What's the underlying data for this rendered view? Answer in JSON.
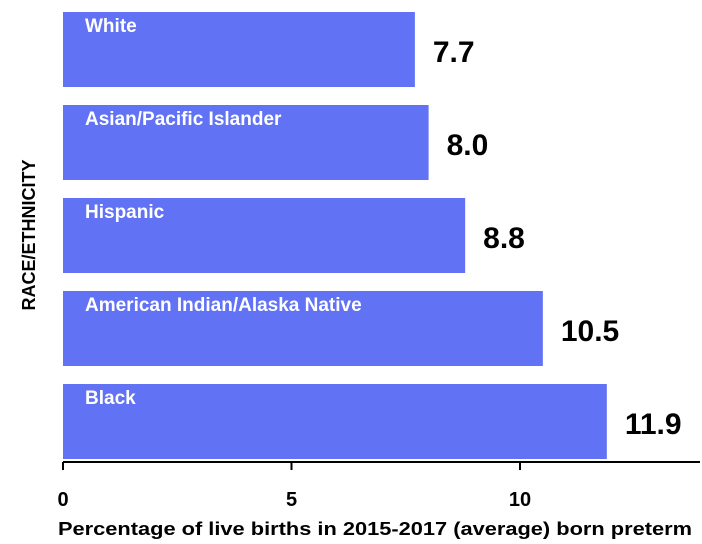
{
  "chart_data": {
    "type": "bar",
    "orientation": "horizontal",
    "categories": [
      "White",
      "Asian/Pacific Islander",
      "Hispanic",
      "American Indian/Alaska Native",
      "Black"
    ],
    "values": [
      7.7,
      8.0,
      8.8,
      10.5,
      11.9
    ],
    "value_labels": [
      "7.7",
      "8.0",
      "8.8",
      "10.5",
      "11.9"
    ],
    "xlabel": "Percentage of live births in 2015-2017 (average) born preterm",
    "ylabel": "RACE/ETHNICITY",
    "xlim": [
      0,
      12.6
    ],
    "xticks": [
      0,
      5,
      10
    ],
    "xtick_labels": [
      "0",
      "5",
      "10"
    ],
    "grid": false,
    "legend": "none",
    "colors": {
      "bar": "#6272F5",
      "category_text": "#ffffff",
      "value_text": "#000000"
    }
  }
}
